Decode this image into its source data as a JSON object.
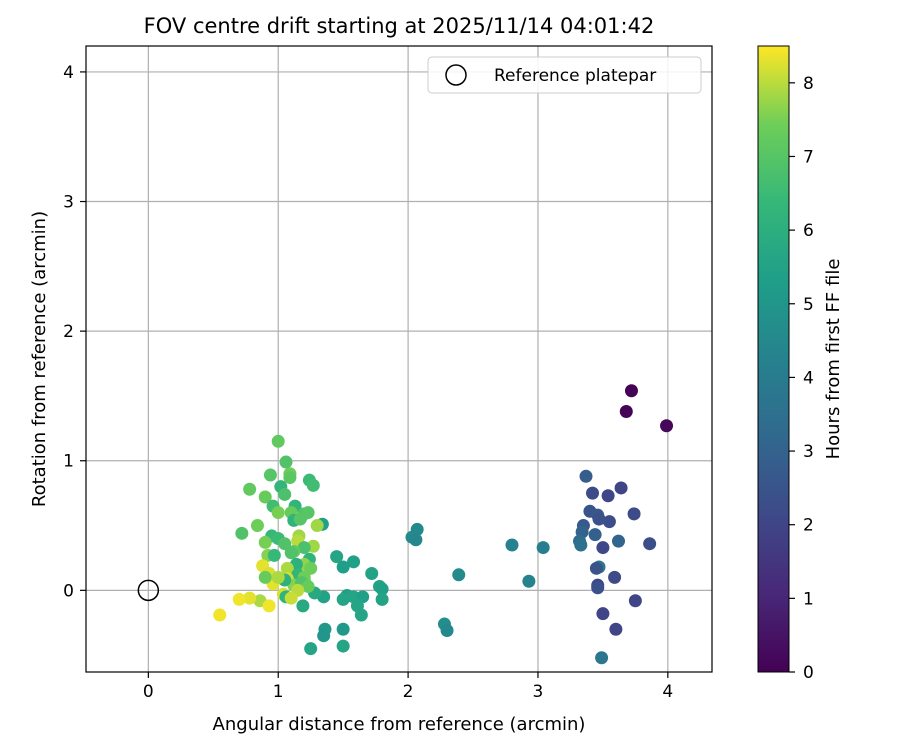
{
  "chart_data": {
    "type": "scatter",
    "title": "FOV centre drift starting at 2025/11/14 04:01:42",
    "xlabel": "Angular distance from reference (arcmin)",
    "ylabel": "Rotation from reference (arcmin)",
    "xlim": [
      -0.48,
      4.34
    ],
    "ylim": [
      -0.63,
      4.2
    ],
    "xticks": [
      "0",
      "1",
      "2",
      "3",
      "4"
    ],
    "yticks": [
      "0",
      "1",
      "2",
      "3",
      "4"
    ],
    "grid": true,
    "legend": {
      "placement": "top-right",
      "entries": [
        "Reference platepar"
      ]
    },
    "reference_point": {
      "x": 0,
      "y": 0
    },
    "colorbar": {
      "label": "Hours from first FF file",
      "range": [
        0,
        8.5
      ],
      "ticks": [
        "0",
        "1",
        "2",
        "3",
        "4",
        "5",
        "6",
        "7",
        "8"
      ],
      "colormap": "viridis"
    },
    "points": [
      {
        "x": 3.72,
        "y": 1.54,
        "c": 0.05
      },
      {
        "x": 3.68,
        "y": 1.38,
        "c": 0.1
      },
      {
        "x": 3.99,
        "y": 1.27,
        "c": 0.15
      },
      {
        "x": 3.37,
        "y": 0.88,
        "c": 2.8
      },
      {
        "x": 3.42,
        "y": 0.75,
        "c": 2.2
      },
      {
        "x": 3.64,
        "y": 0.79,
        "c": 2.0
      },
      {
        "x": 3.54,
        "y": 0.73,
        "c": 2.0
      },
      {
        "x": 3.4,
        "y": 0.61,
        "c": 2.5
      },
      {
        "x": 3.46,
        "y": 0.58,
        "c": 2.6
      },
      {
        "x": 3.55,
        "y": 0.53,
        "c": 2.3
      },
      {
        "x": 3.74,
        "y": 0.59,
        "c": 2.2
      },
      {
        "x": 3.35,
        "y": 0.5,
        "c": 2.7
      },
      {
        "x": 3.47,
        "y": 0.55,
        "c": 2.4
      },
      {
        "x": 3.34,
        "y": 0.45,
        "c": 3.0
      },
      {
        "x": 3.44,
        "y": 0.43,
        "c": 2.9
      },
      {
        "x": 3.32,
        "y": 0.38,
        "c": 3.3
      },
      {
        "x": 3.33,
        "y": 0.35,
        "c": 3.5
      },
      {
        "x": 3.62,
        "y": 0.38,
        "c": 3.1
      },
      {
        "x": 3.5,
        "y": 0.33,
        "c": 2.1
      },
      {
        "x": 3.86,
        "y": 0.36,
        "c": 2.3
      },
      {
        "x": 3.47,
        "y": 0.18,
        "c": 3.8
      },
      {
        "x": 3.45,
        "y": 0.17,
        "c": 2.5
      },
      {
        "x": 3.59,
        "y": 0.1,
        "c": 2.2
      },
      {
        "x": 3.46,
        "y": 0.04,
        "c": 2.1
      },
      {
        "x": 3.46,
        "y": 0.02,
        "c": 2.4
      },
      {
        "x": 3.75,
        "y": -0.08,
        "c": 2.0
      },
      {
        "x": 3.5,
        "y": -0.18,
        "c": 2.0
      },
      {
        "x": 3.6,
        "y": -0.3,
        "c": 2.0
      },
      {
        "x": 3.49,
        "y": -0.52,
        "c": 3.8
      },
      {
        "x": 2.8,
        "y": 0.35,
        "c": 4.2
      },
      {
        "x": 3.04,
        "y": 0.33,
        "c": 4.1
      },
      {
        "x": 2.93,
        "y": 0.07,
        "c": 4.3
      },
      {
        "x": 2.07,
        "y": 0.47,
        "c": 4.5
      },
      {
        "x": 2.03,
        "y": 0.41,
        "c": 4.6
      },
      {
        "x": 2.06,
        "y": 0.39,
        "c": 4.4
      },
      {
        "x": 2.39,
        "y": 0.12,
        "c": 4.6
      },
      {
        "x": 2.28,
        "y": -0.26,
        "c": 4.7
      },
      {
        "x": 2.3,
        "y": -0.31,
        "c": 4.5
      },
      {
        "x": 1.34,
        "y": 0.51,
        "c": 5.4
      },
      {
        "x": 1.45,
        "y": 0.26,
        "c": 5.6
      },
      {
        "x": 1.58,
        "y": 0.22,
        "c": 5.4
      },
      {
        "x": 1.5,
        "y": 0.18,
        "c": 5.3
      },
      {
        "x": 1.72,
        "y": 0.13,
        "c": 5.5
      },
      {
        "x": 1.78,
        "y": 0.03,
        "c": 5.5
      },
      {
        "x": 1.8,
        "y": 0.01,
        "c": 5.4
      },
      {
        "x": 1.53,
        "y": -0.04,
        "c": 5.4
      },
      {
        "x": 1.58,
        "y": -0.05,
        "c": 5.6
      },
      {
        "x": 1.65,
        "y": -0.05,
        "c": 5.4
      },
      {
        "x": 1.5,
        "y": -0.07,
        "c": 5.6
      },
      {
        "x": 1.8,
        "y": -0.07,
        "c": 5.5
      },
      {
        "x": 1.61,
        "y": -0.12,
        "c": 5.6
      },
      {
        "x": 1.64,
        "y": -0.19,
        "c": 5.6
      },
      {
        "x": 1.36,
        "y": -0.3,
        "c": 5.1
      },
      {
        "x": 1.5,
        "y": -0.3,
        "c": 5.1
      },
      {
        "x": 1.35,
        "y": -0.35,
        "c": 5.0
      },
      {
        "x": 1.5,
        "y": -0.43,
        "c": 5.6
      },
      {
        "x": 1.25,
        "y": -0.45,
        "c": 5.6
      },
      {
        "x": 1.35,
        "y": -0.05,
        "c": 5.5
      },
      {
        "x": 1.28,
        "y": -0.02,
        "c": 5.8
      },
      {
        "x": 1.19,
        "y": -0.12,
        "c": 5.8
      },
      {
        "x": 1.2,
        "y": 0.08,
        "c": 5.9
      },
      {
        "x": 1.0,
        "y": 1.15,
        "c": 7.2
      },
      {
        "x": 1.06,
        "y": 0.99,
        "c": 6.9
      },
      {
        "x": 0.94,
        "y": 0.89,
        "c": 7.0
      },
      {
        "x": 1.09,
        "y": 0.9,
        "c": 7.4
      },
      {
        "x": 1.09,
        "y": 0.87,
        "c": 7.1
      },
      {
        "x": 1.24,
        "y": 0.85,
        "c": 6.5
      },
      {
        "x": 1.27,
        "y": 0.81,
        "c": 6.6
      },
      {
        "x": 1.02,
        "y": 0.8,
        "c": 6.3
      },
      {
        "x": 1.05,
        "y": 0.74,
        "c": 6.8
      },
      {
        "x": 0.78,
        "y": 0.78,
        "c": 7.2
      },
      {
        "x": 0.9,
        "y": 0.72,
        "c": 7.3
      },
      {
        "x": 1.13,
        "y": 0.65,
        "c": 6.3
      },
      {
        "x": 0.96,
        "y": 0.65,
        "c": 6.6
      },
      {
        "x": 1.0,
        "y": 0.6,
        "c": 7.5
      },
      {
        "x": 1.1,
        "y": 0.6,
        "c": 7.3
      },
      {
        "x": 1.2,
        "y": 0.59,
        "c": 6.9
      },
      {
        "x": 1.23,
        "y": 0.6,
        "c": 7.0
      },
      {
        "x": 1.12,
        "y": 0.54,
        "c": 6.2
      },
      {
        "x": 1.17,
        "y": 0.55,
        "c": 7.0
      },
      {
        "x": 0.84,
        "y": 0.5,
        "c": 7.4
      },
      {
        "x": 1.3,
        "y": 0.5,
        "c": 7.8
      },
      {
        "x": 0.72,
        "y": 0.44,
        "c": 6.9
      },
      {
        "x": 0.95,
        "y": 0.42,
        "c": 6.4
      },
      {
        "x": 1.0,
        "y": 0.4,
        "c": 6.5
      },
      {
        "x": 1.16,
        "y": 0.42,
        "c": 7.8
      },
      {
        "x": 1.15,
        "y": 0.38,
        "c": 8.0
      },
      {
        "x": 1.05,
        "y": 0.36,
        "c": 6.9
      },
      {
        "x": 0.9,
        "y": 0.37,
        "c": 7.5
      },
      {
        "x": 1.27,
        "y": 0.34,
        "c": 7.8
      },
      {
        "x": 1.2,
        "y": 0.33,
        "c": 6.8
      },
      {
        "x": 1.12,
        "y": 0.3,
        "c": 7.2
      },
      {
        "x": 1.1,
        "y": 0.29,
        "c": 6.9
      },
      {
        "x": 0.92,
        "y": 0.27,
        "c": 7.6
      },
      {
        "x": 0.97,
        "y": 0.27,
        "c": 6.4
      },
      {
        "x": 1.24,
        "y": 0.24,
        "c": 6.2
      },
      {
        "x": 1.2,
        "y": 0.2,
        "c": 7.7
      },
      {
        "x": 1.14,
        "y": 0.2,
        "c": 6.1
      },
      {
        "x": 1.07,
        "y": 0.17,
        "c": 7.9
      },
      {
        "x": 1.25,
        "y": 0.17,
        "c": 7.4
      },
      {
        "x": 0.88,
        "y": 0.19,
        "c": 8.3
      },
      {
        "x": 0.93,
        "y": 0.13,
        "c": 8.2
      },
      {
        "x": 0.91,
        "y": 0.11,
        "c": 8.2
      },
      {
        "x": 1.15,
        "y": 0.12,
        "c": 6.3
      },
      {
        "x": 1.2,
        "y": 0.1,
        "c": 7.4
      },
      {
        "x": 1.07,
        "y": 0.09,
        "c": 8.2
      },
      {
        "x": 0.96,
        "y": 0.05,
        "c": 8.3
      },
      {
        "x": 1.12,
        "y": 0.04,
        "c": 7.6
      },
      {
        "x": 1.18,
        "y": 0.06,
        "c": 6.9
      },
      {
        "x": 1.05,
        "y": 0.08,
        "c": 6.1
      },
      {
        "x": 0.9,
        "y": 0.1,
        "c": 7.3
      },
      {
        "x": 1.0,
        "y": 0.1,
        "c": 7.9
      },
      {
        "x": 1.23,
        "y": 0.03,
        "c": 7.3
      },
      {
        "x": 1.15,
        "y": 0.0,
        "c": 8.0
      },
      {
        "x": 1.04,
        "y": -0.03,
        "c": 8.2
      },
      {
        "x": 1.06,
        "y": -0.05,
        "c": 6.2
      },
      {
        "x": 1.1,
        "y": -0.06,
        "c": 8.1
      },
      {
        "x": 0.86,
        "y": -0.08,
        "c": 7.9
      },
      {
        "x": 0.78,
        "y": -0.06,
        "c": 8.3
      },
      {
        "x": 0.7,
        "y": -0.07,
        "c": 8.4
      },
      {
        "x": 0.93,
        "y": -0.12,
        "c": 8.4
      },
      {
        "x": 0.55,
        "y": -0.19,
        "c": 8.4
      }
    ]
  }
}
